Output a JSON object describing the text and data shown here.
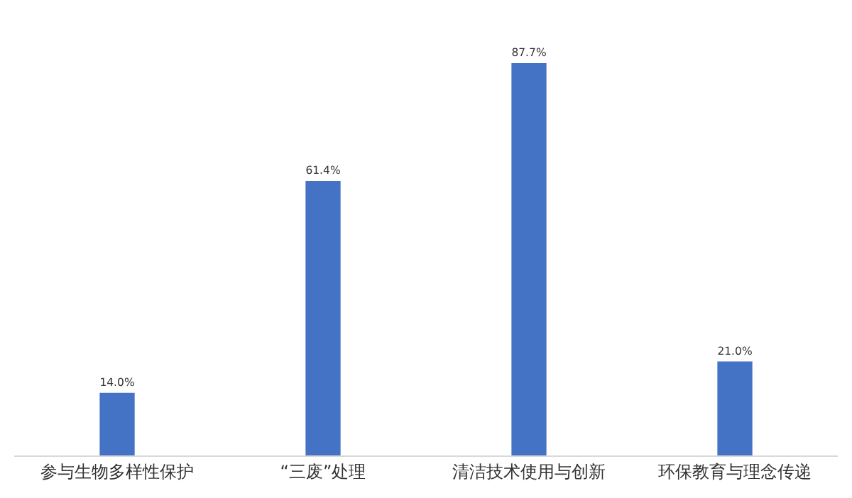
{
  "chart_data": {
    "type": "bar",
    "categories": [
      "参与生物多样性保护",
      "“三废”处理",
      "清洁技术使用与创新",
      "环保教育与理念传递"
    ],
    "values": [
      14.0,
      61.4,
      87.7,
      21.0
    ],
    "value_labels": [
      "14.0%",
      "61.4%",
      "87.7%",
      "21.0%"
    ],
    "color": "#4472c4",
    "grid": false,
    "legend": false
  }
}
